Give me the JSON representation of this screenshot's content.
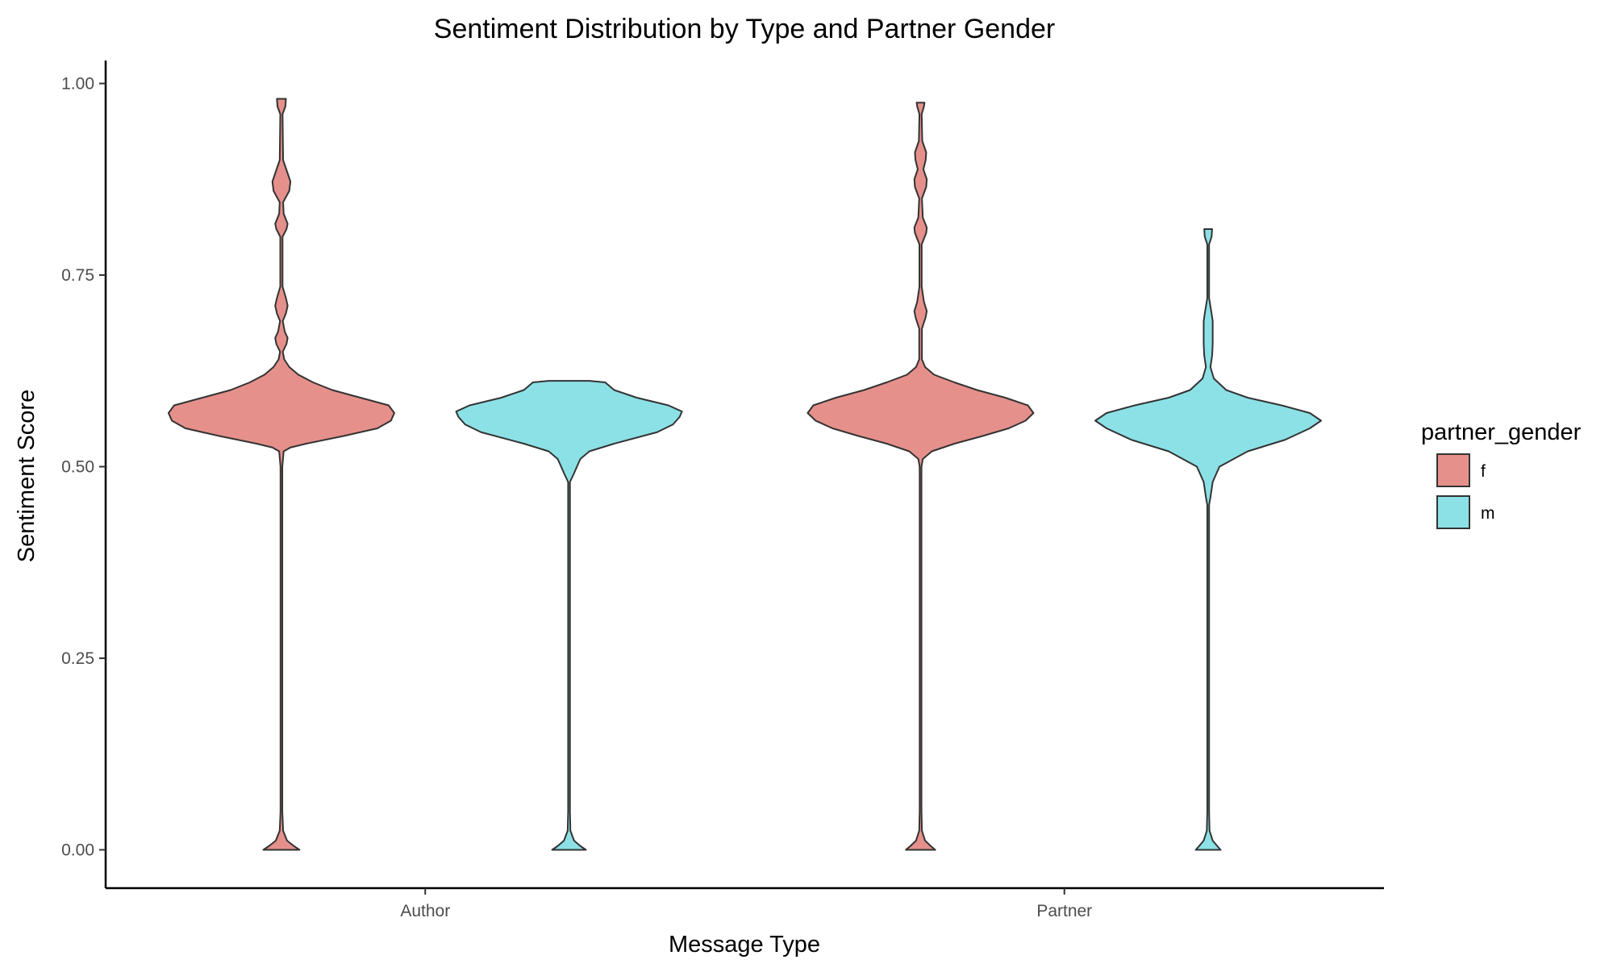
{
  "chart_data": {
    "type": "violin",
    "title": "Sentiment Distribution by Type and Partner Gender",
    "xlabel": "Message Type",
    "ylabel": "Sentiment Score",
    "categories": [
      "Author",
      "Partner"
    ],
    "ylim": [
      -0.05,
      1.03
    ],
    "yticks": [
      0.0,
      0.25,
      0.5,
      0.75,
      1.0
    ],
    "ytick_labels": [
      "0.00",
      "0.25",
      "0.50",
      "0.75",
      "1.00"
    ],
    "grid": false,
    "legend": {
      "title": "partner_gender",
      "placement": "right",
      "entries": [
        {
          "label": "f",
          "color": "#e6908b"
        },
        {
          "label": "m",
          "color": "#8be1e6"
        }
      ]
    },
    "series": [
      {
        "name": "f",
        "color": "#e6908b",
        "violins": [
          {
            "category": "Author",
            "min": 0.0,
            "max": 0.98,
            "profile": [
              [
                0.0,
                0.16
              ],
              [
                0.005,
                0.11
              ],
              [
                0.012,
                0.05
              ],
              [
                0.025,
                0.015
              ],
              [
                0.05,
                0.008
              ],
              [
                0.3,
                0.008
              ],
              [
                0.5,
                0.008
              ],
              [
                0.52,
                0.02
              ],
              [
                0.525,
                0.08
              ],
              [
                0.53,
                0.22
              ],
              [
                0.54,
                0.55
              ],
              [
                0.55,
                0.85
              ],
              [
                0.56,
                0.97
              ],
              [
                0.57,
                1.0
              ],
              [
                0.58,
                0.95
              ],
              [
                0.59,
                0.7
              ],
              [
                0.6,
                0.45
              ],
              [
                0.61,
                0.28
              ],
              [
                0.62,
                0.15
              ],
              [
                0.63,
                0.07
              ],
              [
                0.64,
                0.025
              ],
              [
                0.65,
                0.012
              ],
              [
                0.66,
                0.045
              ],
              [
                0.668,
                0.055
              ],
              [
                0.676,
                0.03
              ],
              [
                0.69,
                0.012
              ],
              [
                0.7,
                0.04
              ],
              [
                0.71,
                0.055
              ],
              [
                0.72,
                0.04
              ],
              [
                0.735,
                0.01
              ],
              [
                0.8,
                0.01
              ],
              [
                0.81,
                0.045
              ],
              [
                0.817,
                0.055
              ],
              [
                0.83,
                0.02
              ],
              [
                0.845,
                0.015
              ],
              [
                0.86,
                0.07
              ],
              [
                0.872,
                0.08
              ],
              [
                0.885,
                0.05
              ],
              [
                0.9,
                0.015
              ],
              [
                0.96,
                0.01
              ],
              [
                0.97,
                0.035
              ],
              [
                0.98,
                0.04
              ]
            ]
          },
          {
            "category": "Partner",
            "min": 0.0,
            "max": 0.975,
            "profile": [
              [
                0.0,
                0.13
              ],
              [
                0.005,
                0.09
              ],
              [
                0.012,
                0.04
              ],
              [
                0.025,
                0.012
              ],
              [
                0.05,
                0.008
              ],
              [
                0.3,
                0.008
              ],
              [
                0.5,
                0.008
              ],
              [
                0.51,
                0.02
              ],
              [
                0.52,
                0.1
              ],
              [
                0.53,
                0.3
              ],
              [
                0.54,
                0.55
              ],
              [
                0.55,
                0.78
              ],
              [
                0.56,
                0.93
              ],
              [
                0.57,
                1.0
              ],
              [
                0.58,
                0.95
              ],
              [
                0.59,
                0.75
              ],
              [
                0.6,
                0.5
              ],
              [
                0.61,
                0.3
              ],
              [
                0.62,
                0.12
              ],
              [
                0.63,
                0.04
              ],
              [
                0.64,
                0.012
              ],
              [
                0.68,
                0.012
              ],
              [
                0.695,
                0.045
              ],
              [
                0.703,
                0.055
              ],
              [
                0.715,
                0.03
              ],
              [
                0.735,
                0.01
              ],
              [
                0.79,
                0.01
              ],
              [
                0.805,
                0.05
              ],
              [
                0.812,
                0.055
              ],
              [
                0.825,
                0.02
              ],
              [
                0.85,
                0.012
              ],
              [
                0.865,
                0.05
              ],
              [
                0.875,
                0.055
              ],
              [
                0.888,
                0.025
              ],
              [
                0.9,
                0.045
              ],
              [
                0.91,
                0.05
              ],
              [
                0.925,
                0.015
              ],
              [
                0.96,
                0.01
              ],
              [
                0.97,
                0.03
              ],
              [
                0.975,
                0.035
              ]
            ]
          }
        ]
      },
      {
        "name": "m",
        "color": "#8be1e6",
        "violins": [
          {
            "category": "Author",
            "min": 0.0,
            "max": 0.612,
            "profile": [
              [
                0.0,
                0.15
              ],
              [
                0.005,
                0.1
              ],
              [
                0.012,
                0.045
              ],
              [
                0.025,
                0.012
              ],
              [
                0.05,
                0.008
              ],
              [
                0.3,
                0.008
              ],
              [
                0.48,
                0.008
              ],
              [
                0.49,
                0.04
              ],
              [
                0.5,
                0.07
              ],
              [
                0.51,
                0.1
              ],
              [
                0.52,
                0.18
              ],
              [
                0.53,
                0.4
              ],
              [
                0.545,
                0.78
              ],
              [
                0.555,
                0.92
              ],
              [
                0.565,
                0.98
              ],
              [
                0.572,
                1.0
              ],
              [
                0.58,
                0.88
              ],
              [
                0.59,
                0.6
              ],
              [
                0.6,
                0.4
              ],
              [
                0.61,
                0.32
              ],
              [
                0.612,
                0.18
              ]
            ]
          },
          {
            "category": "Partner",
            "min": 0.0,
            "max": 0.81,
            "profile": [
              [
                0.0,
                0.11
              ],
              [
                0.005,
                0.08
              ],
              [
                0.012,
                0.04
              ],
              [
                0.025,
                0.012
              ],
              [
                0.05,
                0.008
              ],
              [
                0.3,
                0.008
              ],
              [
                0.45,
                0.008
              ],
              [
                0.46,
                0.02
              ],
              [
                0.48,
                0.04
              ],
              [
                0.5,
                0.1
              ],
              [
                0.52,
                0.35
              ],
              [
                0.535,
                0.68
              ],
              [
                0.55,
                0.9
              ],
              [
                0.56,
                1.0
              ],
              [
                0.57,
                0.9
              ],
              [
                0.58,
                0.65
              ],
              [
                0.59,
                0.35
              ],
              [
                0.6,
                0.16
              ],
              [
                0.615,
                0.05
              ],
              [
                0.63,
                0.02
              ],
              [
                0.645,
                0.035
              ],
              [
                0.66,
                0.04
              ],
              [
                0.69,
                0.04
              ],
              [
                0.7,
                0.03
              ],
              [
                0.72,
                0.008
              ],
              [
                0.79,
                0.008
              ],
              [
                0.8,
                0.03
              ],
              [
                0.81,
                0.035
              ]
            ]
          }
        ]
      }
    ]
  }
}
